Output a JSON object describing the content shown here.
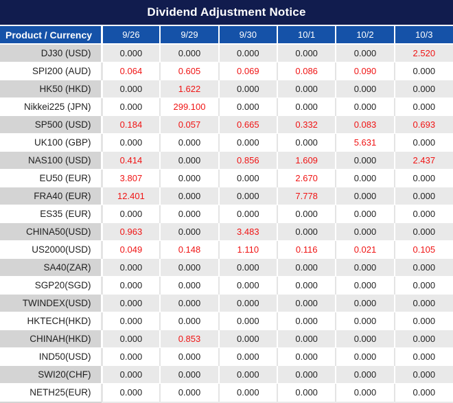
{
  "title": "Dividend Adjustment Notice",
  "colors": {
    "title_bg": "#111c4e",
    "header_bg": "#1552a8",
    "alt_row_product_bg": "#d4d4d4",
    "alt_row_value_bg": "#e9e9e9",
    "highlight_red": "#f01313",
    "text_dark": "#1f1f1f"
  },
  "table": {
    "columns": [
      "Product / Currency",
      "9/26",
      "9/29",
      "9/30",
      "10/1",
      "10/2",
      "10/3"
    ],
    "rows": [
      {
        "product": "DJ30 (USD)",
        "values": [
          "0.000",
          "0.000",
          "0.000",
          "0.000",
          "0.000",
          "2.520"
        ],
        "red": [
          false,
          false,
          false,
          false,
          false,
          true
        ]
      },
      {
        "product": "SPI200 (AUD)",
        "values": [
          "0.064",
          "0.605",
          "0.069",
          "0.086",
          "0.090",
          "0.000"
        ],
        "red": [
          true,
          true,
          true,
          true,
          true,
          false
        ]
      },
      {
        "product": "HK50 (HKD)",
        "values": [
          "0.000",
          "1.622",
          "0.000",
          "0.000",
          "0.000",
          "0.000"
        ],
        "red": [
          false,
          true,
          false,
          false,
          false,
          false
        ]
      },
      {
        "product": "Nikkei225 (JPN)",
        "values": [
          "0.000",
          "299.100",
          "0.000",
          "0.000",
          "0.000",
          "0.000"
        ],
        "red": [
          false,
          true,
          false,
          false,
          false,
          false
        ]
      },
      {
        "product": "SP500 (USD)",
        "values": [
          "0.184",
          "0.057",
          "0.665",
          "0.332",
          "0.083",
          "0.693"
        ],
        "red": [
          true,
          true,
          true,
          true,
          true,
          true
        ]
      },
      {
        "product": "UK100 (GBP)",
        "values": [
          "0.000",
          "0.000",
          "0.000",
          "0.000",
          "5.631",
          "0.000"
        ],
        "red": [
          false,
          false,
          false,
          false,
          true,
          false
        ]
      },
      {
        "product": "NAS100 (USD)",
        "values": [
          "0.414",
          "0.000",
          "0.856",
          "1.609",
          "0.000",
          "2.437"
        ],
        "red": [
          true,
          false,
          true,
          true,
          false,
          true
        ]
      },
      {
        "product": "EU50 (EUR)",
        "values": [
          "3.807",
          "0.000",
          "0.000",
          "2.670",
          "0.000",
          "0.000"
        ],
        "red": [
          true,
          false,
          false,
          true,
          false,
          false
        ]
      },
      {
        "product": "FRA40 (EUR)",
        "values": [
          "12.401",
          "0.000",
          "0.000",
          "7.778",
          "0.000",
          "0.000"
        ],
        "red": [
          true,
          false,
          false,
          true,
          false,
          false
        ]
      },
      {
        "product": "ES35 (EUR)",
        "values": [
          "0.000",
          "0.000",
          "0.000",
          "0.000",
          "0.000",
          "0.000"
        ],
        "red": [
          false,
          false,
          false,
          false,
          false,
          false
        ]
      },
      {
        "product": "CHINA50(USD)",
        "values": [
          "0.963",
          "0.000",
          "3.483",
          "0.000",
          "0.000",
          "0.000"
        ],
        "red": [
          true,
          false,
          true,
          false,
          false,
          false
        ]
      },
      {
        "product": "US2000(USD)",
        "values": [
          "0.049",
          "0.148",
          "1.110",
          "0.116",
          "0.021",
          "0.105"
        ],
        "red": [
          true,
          true,
          true,
          true,
          true,
          true
        ]
      },
      {
        "product": "SA40(ZAR)",
        "values": [
          "0.000",
          "0.000",
          "0.000",
          "0.000",
          "0.000",
          "0.000"
        ],
        "red": [
          false,
          false,
          false,
          false,
          false,
          false
        ]
      },
      {
        "product": "SGP20(SGD)",
        "values": [
          "0.000",
          "0.000",
          "0.000",
          "0.000",
          "0.000",
          "0.000"
        ],
        "red": [
          false,
          false,
          false,
          false,
          false,
          false
        ]
      },
      {
        "product": "TWINDEX(USD)",
        "values": [
          "0.000",
          "0.000",
          "0.000",
          "0.000",
          "0.000",
          "0.000"
        ],
        "red": [
          false,
          false,
          false,
          false,
          false,
          false
        ]
      },
      {
        "product": "HKTECH(HKD)",
        "values": [
          "0.000",
          "0.000",
          "0.000",
          "0.000",
          "0.000",
          "0.000"
        ],
        "red": [
          false,
          false,
          false,
          false,
          false,
          false
        ]
      },
      {
        "product": "CHINAH(HKD)",
        "values": [
          "0.000",
          "0.853",
          "0.000",
          "0.000",
          "0.000",
          "0.000"
        ],
        "red": [
          false,
          true,
          false,
          false,
          false,
          false
        ]
      },
      {
        "product": "IND50(USD)",
        "values": [
          "0.000",
          "0.000",
          "0.000",
          "0.000",
          "0.000",
          "0.000"
        ],
        "red": [
          false,
          false,
          false,
          false,
          false,
          false
        ]
      },
      {
        "product": "SWI20(CHF)",
        "values": [
          "0.000",
          "0.000",
          "0.000",
          "0.000",
          "0.000",
          "0.000"
        ],
        "red": [
          false,
          false,
          false,
          false,
          false,
          false
        ]
      },
      {
        "product": "NETH25(EUR)",
        "values": [
          "0.000",
          "0.000",
          "0.000",
          "0.000",
          "0.000",
          "0.000"
        ],
        "red": [
          false,
          false,
          false,
          false,
          false,
          false
        ]
      }
    ]
  }
}
